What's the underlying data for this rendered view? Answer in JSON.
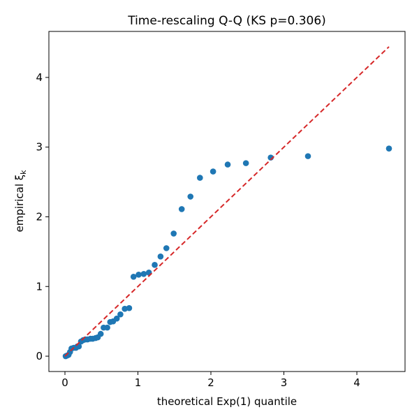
{
  "chart_data": {
    "type": "scatter",
    "title": "Time-rescaling Q-Q (KS p=0.306)",
    "xlabel": "theoretical Exp(1) quantile",
    "ylabel": "empirical ξ",
    "ylabel_subscript": "k",
    "xlim": [
      -0.22,
      4.66
    ],
    "ylim": [
      -0.22,
      4.66
    ],
    "xticks": [
      0,
      1,
      2,
      3,
      4
    ],
    "yticks": [
      0,
      1,
      2,
      3,
      4
    ],
    "grid": false,
    "legend": "none",
    "colors": {
      "points": "#1f77b4",
      "reference_line": "#d62728"
    },
    "reference_line": {
      "style": "dashed",
      "x": [
        0,
        4.44
      ],
      "y": [
        0,
        4.44
      ]
    },
    "series": [
      {
        "x": [
          0.01,
          0.03,
          0.05,
          0.07,
          0.09,
          0.12,
          0.15,
          0.17,
          0.19,
          0.22,
          0.25,
          0.28,
          0.31,
          0.35,
          0.38,
          0.42,
          0.45,
          0.49,
          0.53,
          0.58,
          0.62,
          0.66,
          0.71,
          0.76,
          0.82,
          0.88,
          0.94,
          1.01,
          1.08,
          1.15,
          1.23,
          1.31,
          1.39,
          1.49,
          1.6,
          1.72,
          1.85,
          2.03,
          2.23,
          2.48,
          2.82,
          3.33,
          4.44
        ],
        "y": [
          0.0,
          0.01,
          0.02,
          0.06,
          0.11,
          0.12,
          0.12,
          0.14,
          0.14,
          0.21,
          0.23,
          0.24,
          0.24,
          0.25,
          0.25,
          0.26,
          0.27,
          0.32,
          0.41,
          0.41,
          0.49,
          0.5,
          0.54,
          0.6,
          0.68,
          0.69,
          1.14,
          1.17,
          1.18,
          1.2,
          1.31,
          1.43,
          1.55,
          1.76,
          2.11,
          2.29,
          2.56,
          2.65,
          2.75,
          2.77,
          2.85,
          2.87,
          2.98
        ]
      }
    ]
  }
}
